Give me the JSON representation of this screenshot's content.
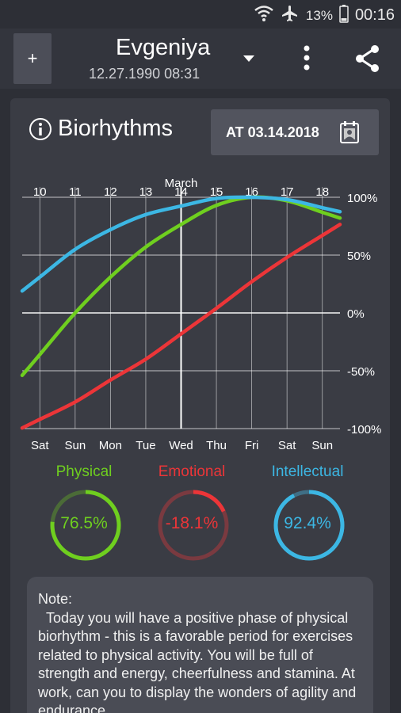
{
  "status": {
    "battery": "13%",
    "time": "00:16"
  },
  "header": {
    "add_label": "+",
    "name": "Evgeniya",
    "dob": "12.27.1990 08:31"
  },
  "card": {
    "title": "Biorhythms",
    "date_button": "AT 03.14.2018"
  },
  "colors": {
    "physical": "#6fcf1f",
    "emotional": "#ec3538",
    "intellectual": "#3cb7e4",
    "background": "#2d2f36",
    "card": "#3a3c44"
  },
  "chart_data": {
    "type": "line",
    "month_label": "March",
    "x": [
      10,
      11,
      12,
      13,
      14,
      15,
      16,
      17,
      18
    ],
    "day_names": [
      "Sat",
      "Sun",
      "Mon",
      "Tue",
      "Wed",
      "Thu",
      "Fri",
      "Sat",
      "Sun"
    ],
    "selected_day": 14,
    "y_ticks": [
      "100%",
      "50%",
      "0%",
      "-50%",
      "-100%"
    ],
    "ylim": [
      -100,
      100
    ],
    "series": [
      {
        "name": "Physical",
        "color": "#6fcf1f",
        "values": [
          -36,
          0,
          31,
          57,
          76.5,
          93,
          100,
          97,
          87
        ]
      },
      {
        "name": "Emotional",
        "color": "#ec3538",
        "values": [
          -92,
          -77,
          -58,
          -40,
          -18.1,
          4,
          27,
          48,
          67
        ]
      },
      {
        "name": "Intellectual",
        "color": "#3cb7e4",
        "values": [
          31,
          55,
          72,
          85,
          92.4,
          99,
          100,
          98,
          91
        ]
      }
    ]
  },
  "meters": [
    {
      "label": "Physical",
      "value": "76.5%",
      "fraction": 0.765,
      "color": "#6fcf1f",
      "track": "#4b6b37"
    },
    {
      "label": "Emotional",
      "value": "-18.1%",
      "fraction": 0.181,
      "color": "#ec3538",
      "track": "#7a3a40"
    },
    {
      "label": "Intellectual",
      "value": "92.4%",
      "fraction": 0.924,
      "color": "#3cb7e4",
      "track": "#3f6f86"
    }
  ],
  "note": {
    "title": "Note:",
    "text": "Today you will have a positive phase of physical biorhythm - this is a favorable period for exercises related to physical activity. You will be full of strength and energy, cheerfulness and stamina. At work, can you to display the wonders of agility and endurance."
  }
}
